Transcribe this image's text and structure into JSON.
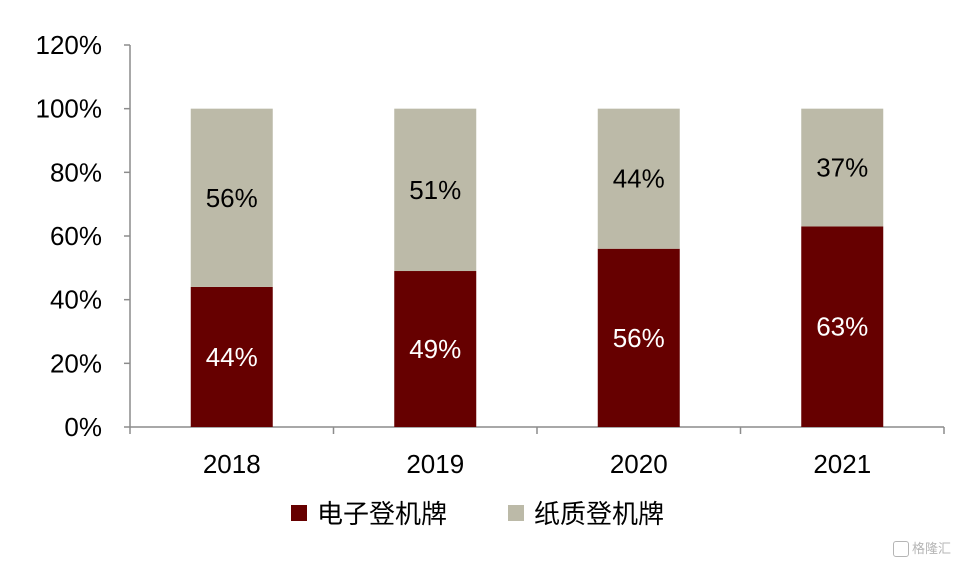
{
  "chart_data": {
    "type": "bar",
    "stacked": true,
    "categories": [
      "2018",
      "2019",
      "2020",
      "2021"
    ],
    "series": [
      {
        "name": "电子登机牌",
        "values": [
          44,
          49,
          56,
          63
        ],
        "labels": [
          "44%",
          "49%",
          "56%",
          "63%"
        ],
        "color": "#660000",
        "label_color": "#ffffff"
      },
      {
        "name": "纸质登机牌",
        "values": [
          56,
          51,
          44,
          37
        ],
        "labels": [
          "56%",
          "51%",
          "44%",
          "37%"
        ],
        "color": "#bcbaa8",
        "label_color": "#000000"
      }
    ],
    "ylim": [
      0,
      120
    ],
    "yticks": [
      0,
      20,
      40,
      60,
      80,
      100,
      120
    ],
    "ytick_labels": [
      "0%",
      "20%",
      "40%",
      "60%",
      "80%",
      "100%",
      "120%"
    ],
    "title": "",
    "xlabel": "",
    "ylabel": "",
    "grid": false,
    "legend_position": "bottom"
  },
  "watermark": {
    "text": "格隆汇",
    "icon": "glh-logo-icon"
  }
}
